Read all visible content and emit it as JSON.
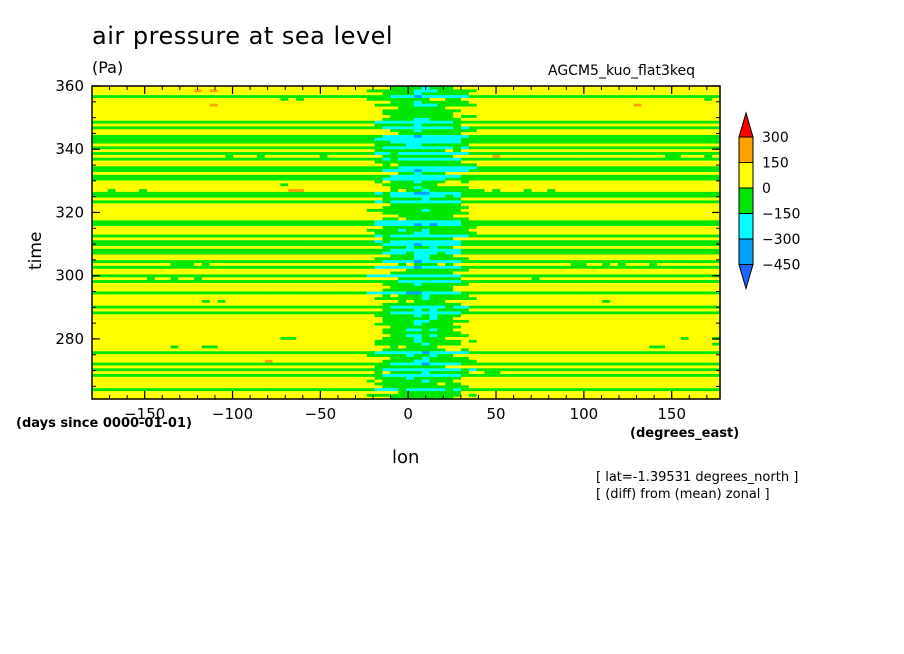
{
  "chart_data": {
    "type": "heatmap",
    "title": "air pressure at sea level",
    "units": "(Pa)",
    "run_label": "AGCM5_kuo_flat3keq",
    "xlabel": "lon",
    "x_units": "(degrees_east)",
    "ylabel": "time",
    "y_units": "(days since 0000-01-01)",
    "xlim": [
      -180,
      177.5
    ],
    "ylim": [
      261,
      360
    ],
    "x_ticks": [
      -150,
      -100,
      -50,
      0,
      50,
      100,
      150
    ],
    "y_ticks": [
      280,
      300,
      320,
      340,
      360
    ],
    "annotations": [
      "[ lat=-1.39531 degrees_north ]",
      "[ (diff) from (mean) zonal ]"
    ],
    "colorbar": {
      "levels": [
        -450,
        -300,
        -150,
        0,
        150,
        300
      ],
      "labels": [
        "300",
        "150",
        "0",
        "-150",
        "-300",
        "-450"
      ],
      "colors": [
        "#1e64ff",
        "#00a0ff",
        "#00ffff",
        "#00e600",
        "#ffff00",
        "#ffa000",
        "#ff0000"
      ]
    },
    "description_of_field": "Zonal anomaly of sea-level pressure along the equator vs time; mostly 0 to 150 Pa (yellow) with bands of -150 to 0 (green); negative anomalies -150 to -450 concentrated near lon 0 to 30."
  }
}
